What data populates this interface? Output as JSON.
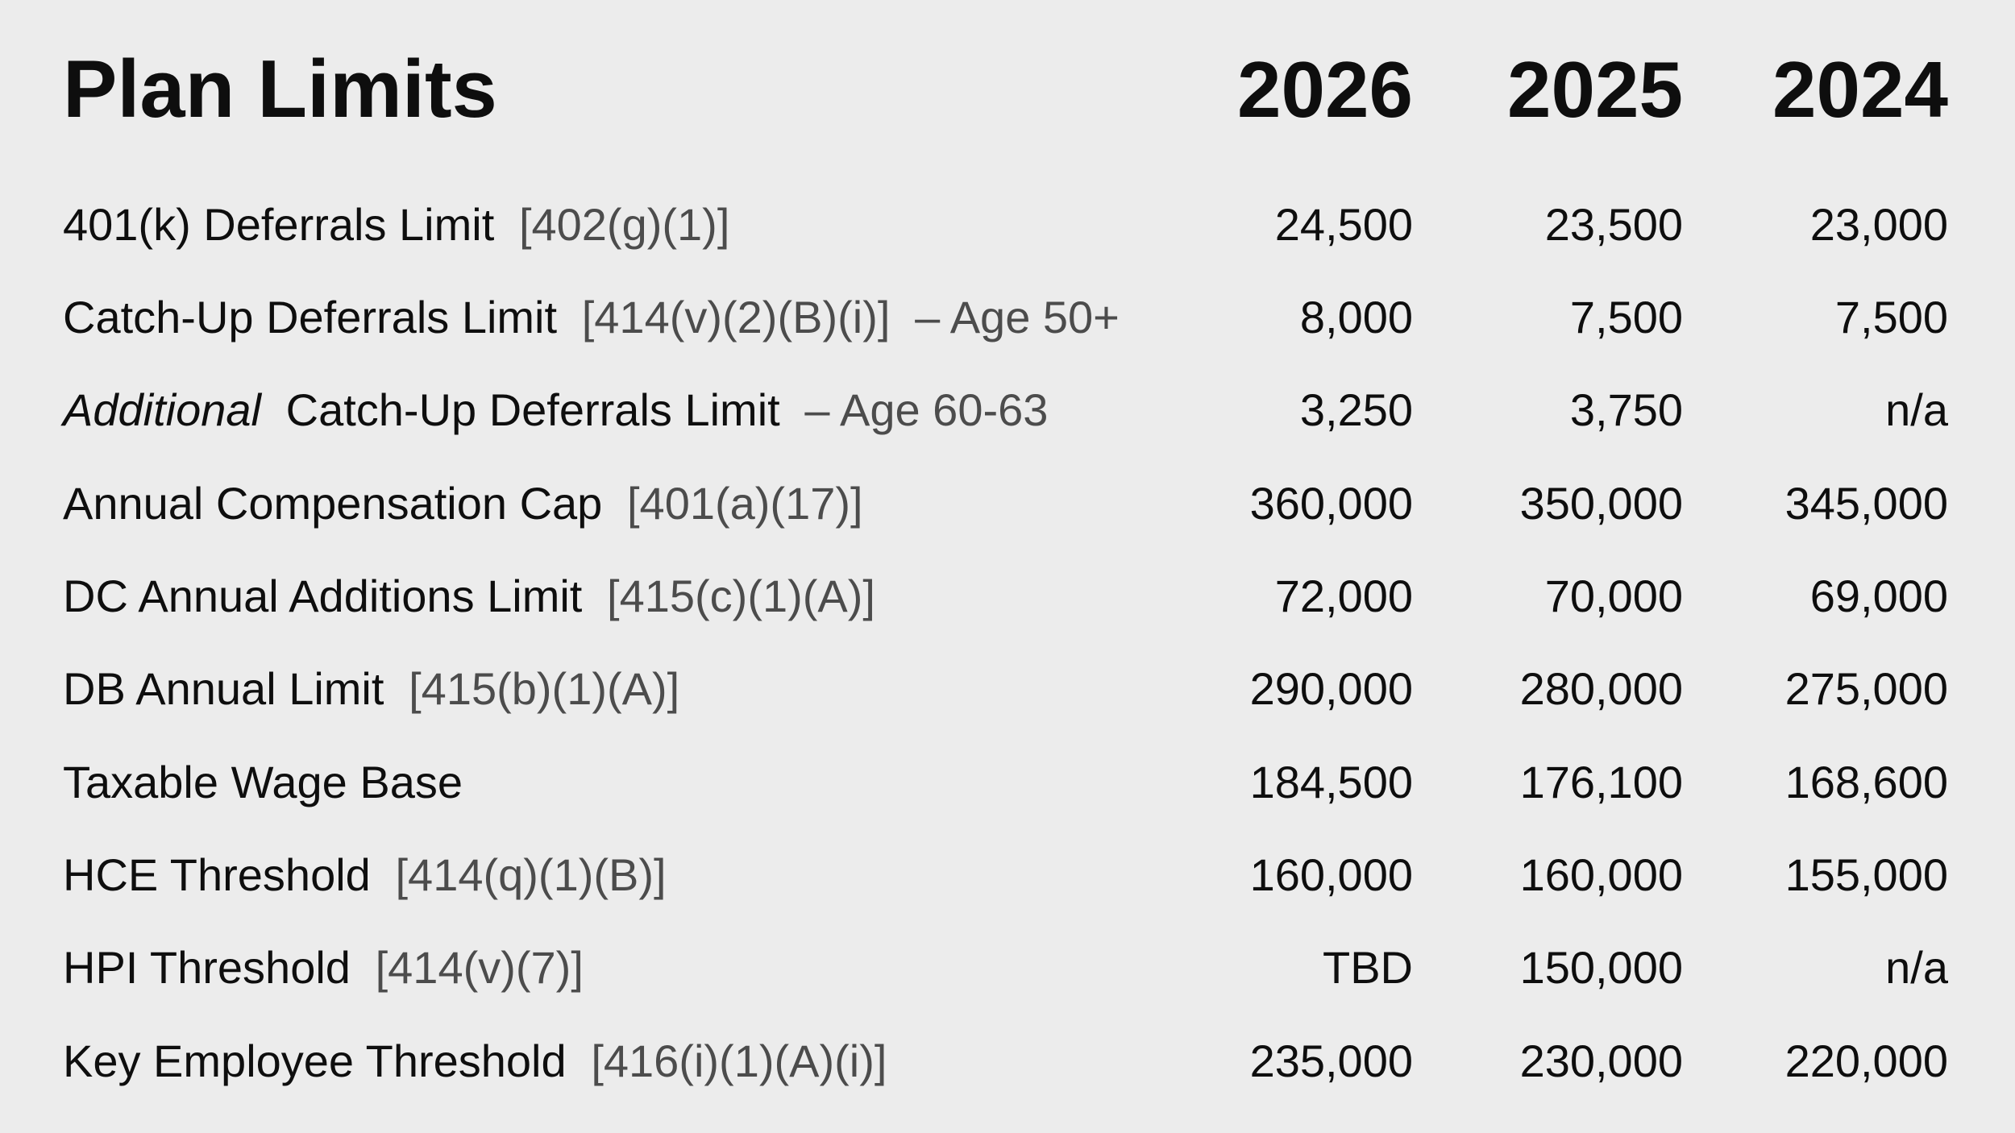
{
  "page": {
    "background_color": "#ececec",
    "text_color": "#0e0e0e",
    "secondary_text_color": "#4c4c4c"
  },
  "table": {
    "title": "Plan Limits",
    "columns": [
      "2026",
      "2025",
      "2024"
    ],
    "rows": [
      {
        "label": "401(k) Deferrals Limit",
        "ref": "[402(g)(1)]",
        "values": [
          "24,500",
          "23,500",
          "23,000"
        ]
      },
      {
        "label": "Catch-Up Deferrals Limit",
        "ref": "[414(v)(2)(B)(i)]",
        "suffix": "– Age 50+",
        "values": [
          "8,000",
          "7,500",
          "7,500"
        ]
      },
      {
        "italic_prefix": "Additional",
        "label": "Catch-Up Deferrals Limit",
        "suffix": "– Age 60-63",
        "values": [
          "3,250",
          "3,750",
          "n/a"
        ]
      },
      {
        "label": "Annual Compensation Cap",
        "ref": "[401(a)(17)]",
        "values": [
          "360,000",
          "350,000",
          "345,000"
        ]
      },
      {
        "label": "DC Annual Additions Limit",
        "ref": "[415(c)(1)(A)]",
        "values": [
          "72,000",
          "70,000",
          "69,000"
        ]
      },
      {
        "label": "DB Annual Limit",
        "ref": "[415(b)(1)(A)]",
        "values": [
          "290,000",
          "280,000",
          "275,000"
        ]
      },
      {
        "label": "Taxable Wage Base",
        "values": [
          "184,500",
          "176,100",
          "168,600"
        ]
      },
      {
        "label": "HCE Threshold",
        "ref": "[414(q)(1)(B)]",
        "values": [
          "160,000",
          "160,000",
          "155,000"
        ]
      },
      {
        "label": "HPI Threshold",
        "ref": "[414(v)(7)]",
        "values": [
          "TBD",
          "150,000",
          "n/a"
        ]
      },
      {
        "label": "Key Employee Threshold",
        "ref": "[416(i)(1)(A)(i)]",
        "values": [
          "235,000",
          "230,000",
          "220,000"
        ]
      }
    ]
  }
}
